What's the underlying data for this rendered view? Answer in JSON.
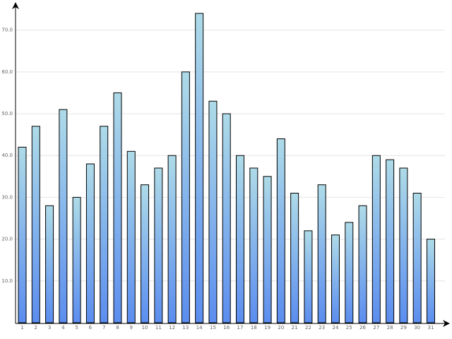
{
  "chart_data": {
    "type": "bar",
    "categories": [
      "1",
      "2",
      "3",
      "4",
      "5",
      "6",
      "7",
      "8",
      "9",
      "10",
      "11",
      "12",
      "13",
      "14",
      "15",
      "16",
      "17",
      "18",
      "19",
      "20",
      "21",
      "22",
      "23",
      "24",
      "25",
      "26",
      "27",
      "28",
      "29",
      "30",
      "31"
    ],
    "values": [
      42,
      47,
      28,
      51,
      30,
      38,
      47,
      55,
      41,
      33,
      37,
      40,
      60,
      74,
      53,
      50,
      40,
      37,
      35,
      44,
      31,
      22,
      33,
      21,
      24,
      28,
      40,
      39,
      37,
      31,
      20
    ],
    "color": [
      "#aedbe8",
      "#5b8def"
    ],
    "ylim": [
      0,
      76
    ],
    "yticks": [
      {
        "value": 10,
        "label": "10.0"
      },
      {
        "value": 20,
        "label": "20.0"
      },
      {
        "value": 30,
        "label": "30.0"
      },
      {
        "value": 40,
        "label": "40.0"
      },
      {
        "value": 50,
        "label": "50.0"
      },
      {
        "value": 60,
        "label": "60.0"
      },
      {
        "value": 70,
        "label": "70.0"
      }
    ],
    "grid": true
  }
}
